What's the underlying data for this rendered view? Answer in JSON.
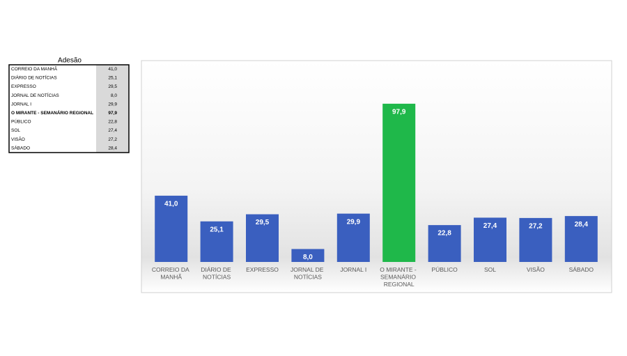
{
  "table": {
    "title": "Adesão",
    "bold_row": 5
  },
  "chart_data": {
    "type": "bar",
    "categories": [
      "CORREIO DA MANHÃ",
      "DIÁRIO DE NOTÍCIAS",
      "EXPRESSO",
      "JORNAL DE NOTÍCIAS",
      "JORNAL I",
      "O MIRANTE - SEMANÁRIO REGIONAL",
      "PÚBLICO",
      "SOL",
      "VISÃO",
      "SÁBADO"
    ],
    "values": [
      41.0,
      25.1,
      29.5,
      8.0,
      29.9,
      97.9,
      22.8,
      27.4,
      27.2,
      28.4
    ],
    "value_labels": [
      "41,0",
      "25,1",
      "29,5",
      "8,0",
      "29,9",
      "97,9",
      "22,8",
      "27,4",
      "27,2",
      "28,4"
    ],
    "colors": [
      "#3a5fbf",
      "#3a5fbf",
      "#3a5fbf",
      "#3a5fbf",
      "#3a5fbf",
      "#1fb84a",
      "#3a5fbf",
      "#3a5fbf",
      "#3a5fbf",
      "#3a5fbf"
    ],
    "ylim": [
      0,
      100
    ]
  }
}
